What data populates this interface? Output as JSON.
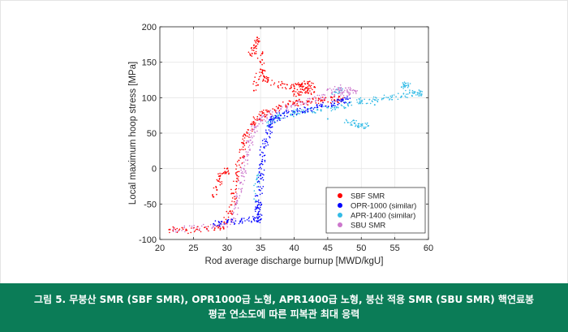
{
  "caption": {
    "line1": "그림 5. 무붕산 SMR (SBF SMR), OPR1000급 노형, APR1400급 노형, 붕산 적용 SMR (SBU SMR) 핵연료봉",
    "line2": "평균 연소도에 따른 피복관 최대 응력",
    "background_color": "#0b7c57"
  },
  "chart_data": {
    "type": "scatter",
    "title": "",
    "xlabel": "Rod average discharge burnup [MWD/kgU]",
    "ylabel": "Local maximum hoop stress [MPa]",
    "xlim": [
      20,
      60
    ],
    "ylim": [
      -100,
      200
    ],
    "xticks": [
      "20",
      "25",
      "30",
      "35",
      "40",
      "45",
      "50",
      "55",
      "60"
    ],
    "yticks": [
      "-100",
      "-50",
      "0",
      "50",
      "100",
      "150",
      "200"
    ],
    "grid": true,
    "legend_position": "bottom-right",
    "series": [
      {
        "name": "SBF SMR",
        "color": "#ff0000",
        "points": [
          [
            21.5,
            -86
          ],
          [
            24,
            -87
          ],
          [
            27,
            -85
          ],
          [
            29.5,
            -84
          ],
          [
            30.5,
            -60
          ],
          [
            31,
            -35
          ],
          [
            31.5,
            -10
          ],
          [
            32,
            15
          ],
          [
            32.5,
            35
          ],
          [
            33,
            50
          ],
          [
            34,
            65
          ],
          [
            35,
            75
          ],
          [
            36,
            80
          ],
          [
            38,
            88
          ],
          [
            40,
            92
          ],
          [
            42,
            95
          ],
          [
            44,
            96
          ],
          [
            46,
            97
          ],
          [
            47,
            98
          ],
          [
            33.5,
            160
          ],
          [
            34,
            170
          ],
          [
            34.5,
            185
          ],
          [
            35,
            150
          ],
          [
            35.5,
            130
          ],
          [
            36,
            122
          ],
          [
            38,
            118
          ],
          [
            40,
            116
          ],
          [
            41,
            118
          ],
          [
            42,
            120
          ],
          [
            43,
            115
          ],
          [
            34,
            110
          ],
          [
            35,
            140
          ],
          [
            28.5,
            -30
          ],
          [
            29,
            -10
          ],
          [
            30,
            0
          ],
          [
            28,
            -40
          ],
          [
            40,
            105
          ],
          [
            41,
            108
          ],
          [
            42,
            110
          ],
          [
            43,
            108
          ]
        ]
      },
      {
        "name": "OPR-1000 (similar)",
        "color": "#0000ff",
        "points": [
          [
            28,
            -78
          ],
          [
            30,
            -76
          ],
          [
            32,
            -74
          ],
          [
            34,
            -72
          ],
          [
            35,
            -72
          ],
          [
            34.5,
            -55
          ],
          [
            34.8,
            -30
          ],
          [
            35,
            -10
          ],
          [
            35.2,
            10
          ],
          [
            35.5,
            30
          ],
          [
            36,
            50
          ],
          [
            36.5,
            62
          ],
          [
            37,
            70
          ],
          [
            38,
            75
          ],
          [
            40,
            80
          ],
          [
            42,
            84
          ],
          [
            44,
            88
          ],
          [
            46,
            92
          ],
          [
            47,
            95
          ],
          [
            48,
            98
          ],
          [
            35,
            -48
          ],
          [
            34.7,
            -65
          ]
        ]
      },
      {
        "name": "APR-1400 (similar)",
        "color": "#33bbe6",
        "points": [
          [
            36,
            60
          ],
          [
            37,
            70
          ],
          [
            38,
            75
          ],
          [
            40,
            78
          ],
          [
            42,
            80
          ],
          [
            44,
            83
          ],
          [
            46,
            86
          ],
          [
            48,
            90
          ],
          [
            50,
            95
          ],
          [
            52,
            97
          ],
          [
            54,
            100
          ],
          [
            56,
            102
          ],
          [
            58,
            108
          ],
          [
            59,
            105
          ],
          [
            56,
            115
          ],
          [
            57,
            118
          ],
          [
            46,
            108
          ],
          [
            47,
            110
          ],
          [
            48,
            65
          ],
          [
            49,
            64
          ],
          [
            50,
            62
          ],
          [
            51,
            60
          ],
          [
            34.5,
            -10
          ],
          [
            34.3,
            -45
          ],
          [
            45,
            70
          ],
          [
            52,
            90
          ]
        ]
      },
      {
        "name": "SBU SMR",
        "color": "#cc77cc",
        "points": [
          [
            22,
            -86
          ],
          [
            25,
            -84
          ],
          [
            28,
            -82
          ],
          [
            30,
            -78
          ],
          [
            31,
            -70
          ],
          [
            31.5,
            -45
          ],
          [
            32,
            -20
          ],
          [
            32.5,
            0
          ],
          [
            33,
            20
          ],
          [
            33.5,
            40
          ],
          [
            34,
            55
          ],
          [
            35,
            68
          ],
          [
            36,
            76
          ],
          [
            38,
            84
          ],
          [
            40,
            90
          ],
          [
            42,
            95
          ],
          [
            44,
            100
          ],
          [
            46,
            104
          ],
          [
            48,
            108
          ],
          [
            49,
            110
          ],
          [
            45,
            112
          ],
          [
            47,
            114
          ]
        ]
      }
    ]
  }
}
